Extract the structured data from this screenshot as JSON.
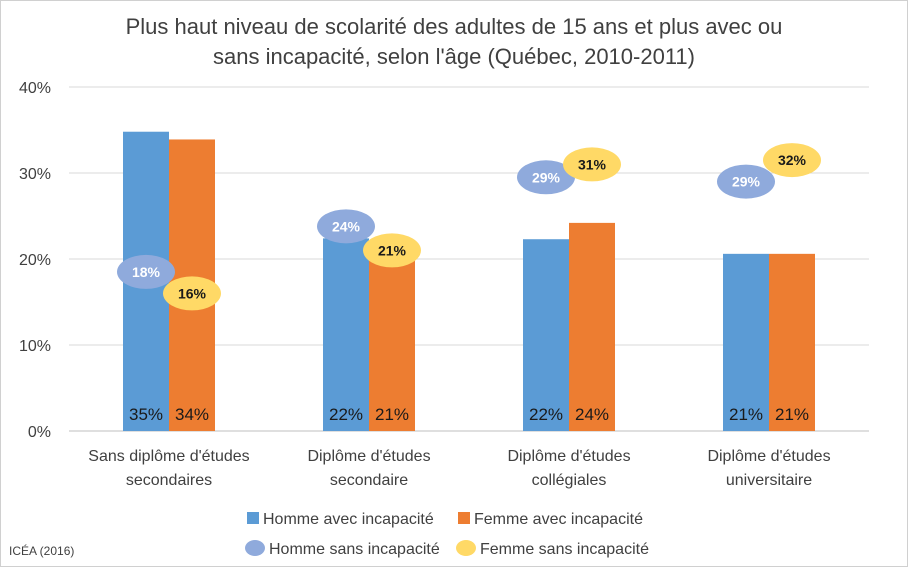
{
  "chart_data": {
    "type": "bar",
    "title": "Plus haut niveau de scolarité des adultes de 15 ans et plus avec ou sans incapacité, selon l'âge (Québec, 2010-2011)",
    "title_lines": [
      "Plus haut niveau de scolarité des adultes de 15 ans et plus avec ou",
      "sans incapacité, selon l'âge (Québec, 2010-2011)"
    ],
    "ylim": [
      0,
      40
    ],
    "y_ticks": [
      0,
      10,
      20,
      30,
      40
    ],
    "y_tick_labels": [
      "0%",
      "10%",
      "20%",
      "30%",
      "40%"
    ],
    "grid": true,
    "categories": [
      "Sans diplôme d'études secondaires",
      "Diplôme d'études secondaire",
      "Diplôme d'études collégiales",
      "Diplôme d'études universitaire"
    ],
    "category_lines": [
      [
        "Sans diplôme d'études",
        "secondaires"
      ],
      [
        "Diplôme d'études",
        "secondaire"
      ],
      [
        "Diplôme d'études",
        "collégiales"
      ],
      [
        "Diplôme d'études",
        "universitaire"
      ]
    ],
    "series": [
      {
        "name": "Homme avec incapacité",
        "kind": "bar",
        "color": "#5b9bd5",
        "values": [
          34.8,
          22.4,
          22.3,
          20.6
        ],
        "labels": [
          "35%",
          "22%",
          "22%",
          "21%"
        ]
      },
      {
        "name": "Femme avec incapacité",
        "kind": "bar",
        "color": "#ed7d31",
        "values": [
          33.9,
          21.2,
          24.2,
          20.6
        ],
        "labels": [
          "34%",
          "21%",
          "24%",
          "21%"
        ]
      },
      {
        "name": "Homme sans incapacité",
        "kind": "marker",
        "color": "#8faadc",
        "text_color": "#ffffff",
        "values": [
          18.5,
          23.8,
          29.5,
          29.0
        ],
        "labels": [
          "18%",
          "24%",
          "29%",
          "29%"
        ]
      },
      {
        "name": "Femme sans incapacité",
        "kind": "marker",
        "color": "#ffd966",
        "text_color": "#1a1a1a",
        "values": [
          16.0,
          21.0,
          31.0,
          31.5
        ],
        "labels": [
          "16%",
          "21%",
          "31%",
          "32%"
        ]
      }
    ],
    "legend_position": "bottom"
  },
  "source": "ICÉA (2016)"
}
